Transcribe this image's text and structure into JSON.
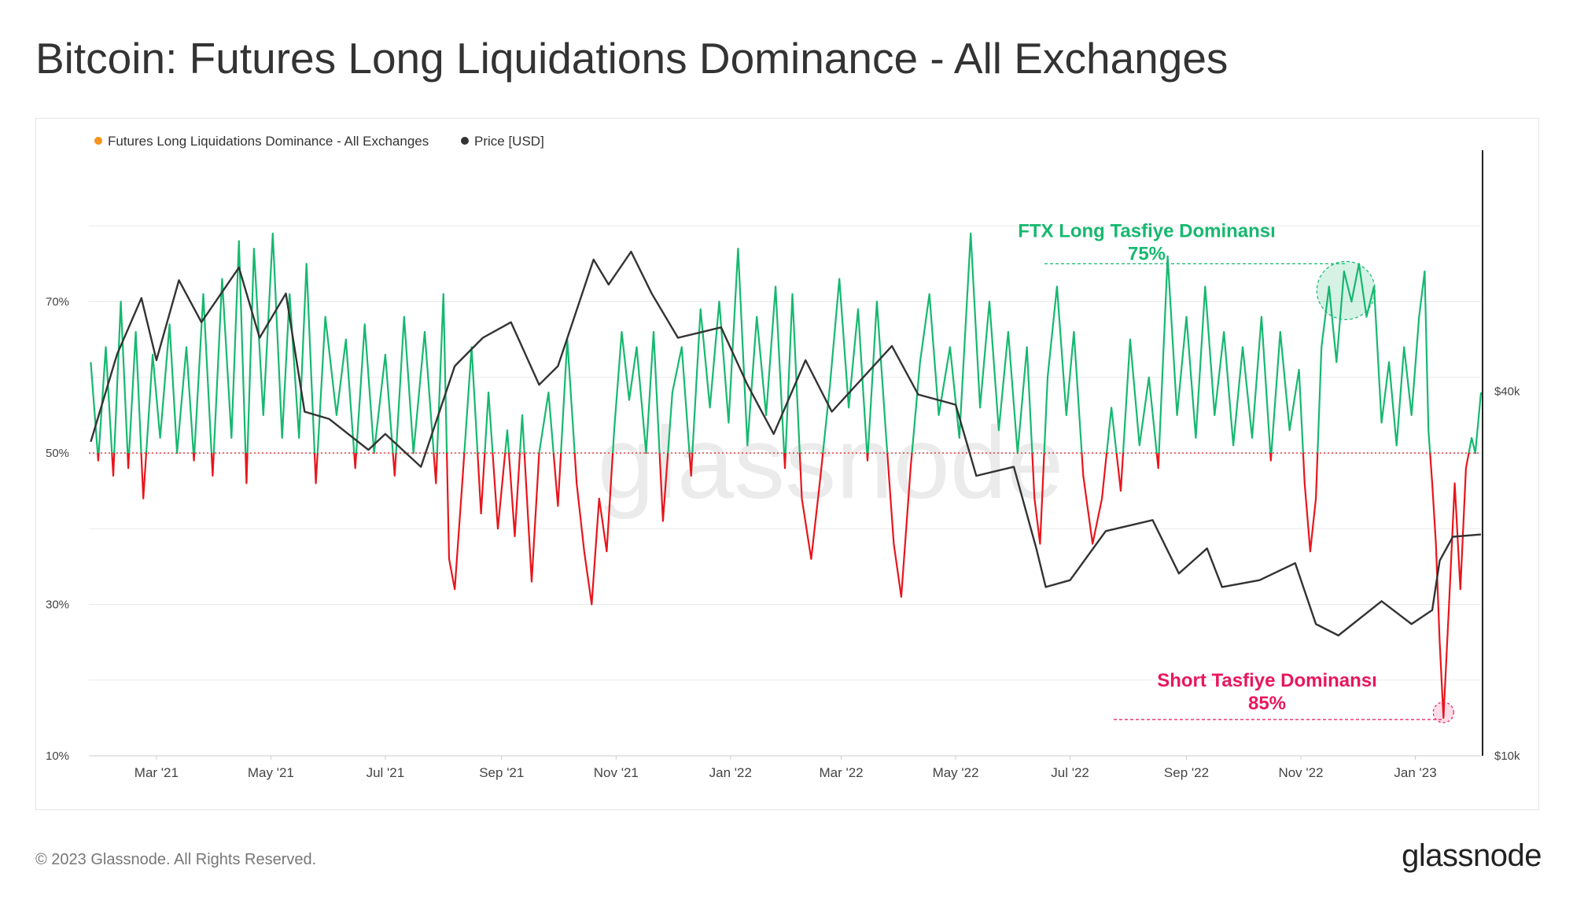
{
  "page": {
    "title": "Bitcoin: Futures Long Liquidations Dominance - All Exchanges",
    "footer_copyright": "© 2023 Glassnode. All Rights Reserved.",
    "brand": "glassnode",
    "watermark": "glassnode"
  },
  "colors": {
    "above_50": "#16b86f",
    "below_50": "#e8151b",
    "price": "#333333",
    "legend_dominance": "#f7931a",
    "legend_price": "#333333",
    "ftx_annotation": "#16b86f",
    "short_annotation": "#e8175d",
    "grid": "#e9e9e9"
  },
  "chart_data": {
    "type": "line",
    "legend": [
      {
        "name": "Futures Long Liquidations Dominance - All Exchanges",
        "color": "#f7931a"
      },
      {
        "name": "Price [USD]",
        "color": "#333333"
      }
    ],
    "legend_position": "top-left",
    "x_ticks": [
      "Mar '21",
      "May '21",
      "Jul '21",
      "Sep '21",
      "Nov '21",
      "Jan '22",
      "Mar '22",
      "May '22",
      "Jul '22",
      "Sep '22",
      "Nov '22",
      "Jan '23"
    ],
    "x_range": [
      "2021-01-24",
      "2023-02-05"
    ],
    "y_left": {
      "ticks": [
        "10%",
        "30%",
        "50%",
        "70%"
      ],
      "values": [
        10,
        30,
        50,
        70
      ],
      "range": [
        10,
        90
      ]
    },
    "y_right": {
      "ticks": [
        "$10k",
        "$40k"
      ],
      "values": [
        10000,
        40000
      ],
      "scale": "log",
      "range": [
        10000,
        100000
      ]
    },
    "threshold": 50,
    "grid": true,
    "price_series": {
      "name": "Price [USD]",
      "points": [
        [
          "2021-01-25",
          33000
        ],
        [
          "2021-02-08",
          46000
        ],
        [
          "2021-02-21",
          57000
        ],
        [
          "2021-03-01",
          45000
        ],
        [
          "2021-03-13",
          61000
        ],
        [
          "2021-03-25",
          52000
        ],
        [
          "2021-04-14",
          64000
        ],
        [
          "2021-04-25",
          49000
        ],
        [
          "2021-05-09",
          58000
        ],
        [
          "2021-05-19",
          37000
        ],
        [
          "2021-06-01",
          36000
        ],
        [
          "2021-06-22",
          32000
        ],
        [
          "2021-07-01",
          34000
        ],
        [
          "2021-07-20",
          30000
        ],
        [
          "2021-08-07",
          44000
        ],
        [
          "2021-08-22",
          49000
        ],
        [
          "2021-09-06",
          52000
        ],
        [
          "2021-09-21",
          41000
        ],
        [
          "2021-10-01",
          44000
        ],
        [
          "2021-10-20",
          66000
        ],
        [
          "2021-10-28",
          60000
        ],
        [
          "2021-11-09",
          68000
        ],
        [
          "2021-11-20",
          58000
        ],
        [
          "2021-12-04",
          49000
        ],
        [
          "2021-12-27",
          51000
        ],
        [
          "2022-01-10",
          41000
        ],
        [
          "2022-01-24",
          34000
        ],
        [
          "2022-02-10",
          45000
        ],
        [
          "2022-02-24",
          37000
        ],
        [
          "2022-03-28",
          47500
        ],
        [
          "2022-04-11",
          39500
        ],
        [
          "2022-05-01",
          38000
        ],
        [
          "2022-05-12",
          29000
        ],
        [
          "2022-06-01",
          30000
        ],
        [
          "2022-06-13",
          22000
        ],
        [
          "2022-06-18",
          19000
        ],
        [
          "2022-07-01",
          19500
        ],
        [
          "2022-07-20",
          23500
        ],
        [
          "2022-08-14",
          24500
        ],
        [
          "2022-08-28",
          20000
        ],
        [
          "2022-09-12",
          22000
        ],
        [
          "2022-09-20",
          19000
        ],
        [
          "2022-10-10",
          19500
        ],
        [
          "2022-10-29",
          20800
        ],
        [
          "2022-11-09",
          16500
        ],
        [
          "2022-11-21",
          15800
        ],
        [
          "2022-12-14",
          18000
        ],
        [
          "2022-12-30",
          16500
        ],
        [
          "2023-01-10",
          17400
        ],
        [
          "2023-01-14",
          21000
        ],
        [
          "2023-01-21",
          23000
        ],
        [
          "2023-02-05",
          23200
        ]
      ]
    },
    "dominance_series": {
      "name": "Futures Long Liquidations Dominance - All Exchanges",
      "unit": "%",
      "points": [
        [
          "2021-01-25",
          62
        ],
        [
          "2021-01-29",
          49
        ],
        [
          "2021-02-02",
          64
        ],
        [
          "2021-02-06",
          47
        ],
        [
          "2021-02-10",
          70
        ],
        [
          "2021-02-14",
          48
        ],
        [
          "2021-02-18",
          66
        ],
        [
          "2021-02-22",
          44
        ],
        [
          "2021-02-27",
          63
        ],
        [
          "2021-03-03",
          52
        ],
        [
          "2021-03-08",
          67
        ],
        [
          "2021-03-12",
          50
        ],
        [
          "2021-03-17",
          64
        ],
        [
          "2021-03-21",
          49
        ],
        [
          "2021-03-26",
          71
        ],
        [
          "2021-03-31",
          47
        ],
        [
          "2021-04-05",
          73
        ],
        [
          "2021-04-10",
          52
        ],
        [
          "2021-04-14",
          78
        ],
        [
          "2021-04-18",
          46
        ],
        [
          "2021-04-22",
          77
        ],
        [
          "2021-04-27",
          55
        ],
        [
          "2021-05-02",
          79
        ],
        [
          "2021-05-07",
          52
        ],
        [
          "2021-05-11",
          71
        ],
        [
          "2021-05-16",
          52
        ],
        [
          "2021-05-20",
          75
        ],
        [
          "2021-05-25",
          46
        ],
        [
          "2021-05-30",
          68
        ],
        [
          "2021-06-05",
          55
        ],
        [
          "2021-06-10",
          65
        ],
        [
          "2021-06-15",
          48
        ],
        [
          "2021-06-20",
          67
        ],
        [
          "2021-06-25",
          50
        ],
        [
          "2021-07-01",
          63
        ],
        [
          "2021-07-06",
          47
        ],
        [
          "2021-07-11",
          68
        ],
        [
          "2021-07-16",
          50
        ],
        [
          "2021-07-22",
          66
        ],
        [
          "2021-07-28",
          46
        ],
        [
          "2021-08-01",
          71
        ],
        [
          "2021-08-04",
          36
        ],
        [
          "2021-08-07",
          32
        ],
        [
          "2021-08-11",
          46
        ],
        [
          "2021-08-16",
          64
        ],
        [
          "2021-08-21",
          42
        ],
        [
          "2021-08-25",
          58
        ],
        [
          "2021-08-30",
          40
        ],
        [
          "2021-09-04",
          53
        ],
        [
          "2021-09-08",
          39
        ],
        [
          "2021-09-12",
          55
        ],
        [
          "2021-09-17",
          33
        ],
        [
          "2021-09-21",
          50
        ],
        [
          "2021-09-26",
          58
        ],
        [
          "2021-10-01",
          43
        ],
        [
          "2021-10-06",
          65
        ],
        [
          "2021-10-11",
          46
        ],
        [
          "2021-10-15",
          37
        ],
        [
          "2021-10-19",
          30
        ],
        [
          "2021-10-23",
          44
        ],
        [
          "2021-10-27",
          37
        ],
        [
          "2021-10-31",
          53
        ],
        [
          "2021-11-04",
          66
        ],
        [
          "2021-11-08",
          57
        ],
        [
          "2021-11-12",
          64
        ],
        [
          "2021-11-17",
          50
        ],
        [
          "2021-11-21",
          66
        ],
        [
          "2021-11-26",
          41
        ],
        [
          "2021-12-01",
          58
        ],
        [
          "2021-12-06",
          64
        ],
        [
          "2021-12-11",
          47
        ],
        [
          "2021-12-16",
          69
        ],
        [
          "2021-12-21",
          56
        ],
        [
          "2021-12-26",
          70
        ],
        [
          "2021-12-31",
          54
        ],
        [
          "2022-01-05",
          77
        ],
        [
          "2022-01-10",
          51
        ],
        [
          "2022-01-15",
          68
        ],
        [
          "2022-01-20",
          55
        ],
        [
          "2022-01-25",
          72
        ],
        [
          "2022-01-30",
          48
        ],
        [
          "2022-02-03",
          71
        ],
        [
          "2022-02-08",
          44
        ],
        [
          "2022-02-13",
          36
        ],
        [
          "2022-02-18",
          47
        ],
        [
          "2022-02-23",
          59
        ],
        [
          "2022-02-28",
          73
        ],
        [
          "2022-03-05",
          56
        ],
        [
          "2022-03-10",
          69
        ],
        [
          "2022-03-15",
          49
        ],
        [
          "2022-03-20",
          70
        ],
        [
          "2022-03-25",
          52
        ],
        [
          "2022-03-29",
          38
        ],
        [
          "2022-04-02",
          31
        ],
        [
          "2022-04-07",
          48
        ],
        [
          "2022-04-12",
          62
        ],
        [
          "2022-04-17",
          71
        ],
        [
          "2022-04-22",
          55
        ],
        [
          "2022-04-28",
          64
        ],
        [
          "2022-05-03",
          52
        ],
        [
          "2022-05-09",
          79
        ],
        [
          "2022-05-14",
          56
        ],
        [
          "2022-05-19",
          70
        ],
        [
          "2022-05-24",
          53
        ],
        [
          "2022-05-29",
          66
        ],
        [
          "2022-06-03",
          50
        ],
        [
          "2022-06-08",
          64
        ],
        [
          "2022-06-12",
          44
        ],
        [
          "2022-06-15",
          38
        ],
        [
          "2022-06-19",
          60
        ],
        [
          "2022-06-24",
          72
        ],
        [
          "2022-06-29",
          55
        ],
        [
          "2022-07-03",
          66
        ],
        [
          "2022-07-08",
          47
        ],
        [
          "2022-07-13",
          38
        ],
        [
          "2022-07-18",
          44
        ],
        [
          "2022-07-23",
          56
        ],
        [
          "2022-07-28",
          45
        ],
        [
          "2022-08-02",
          65
        ],
        [
          "2022-08-07",
          51
        ],
        [
          "2022-08-12",
          60
        ],
        [
          "2022-08-17",
          48
        ],
        [
          "2022-08-22",
          76
        ],
        [
          "2022-08-27",
          55
        ],
        [
          "2022-09-01",
          68
        ],
        [
          "2022-09-06",
          52
        ],
        [
          "2022-09-11",
          72
        ],
        [
          "2022-09-16",
          55
        ],
        [
          "2022-09-21",
          66
        ],
        [
          "2022-09-26",
          51
        ],
        [
          "2022-10-01",
          64
        ],
        [
          "2022-10-06",
          52
        ],
        [
          "2022-10-11",
          68
        ],
        [
          "2022-10-16",
          49
        ],
        [
          "2022-10-21",
          66
        ],
        [
          "2022-10-26",
          53
        ],
        [
          "2022-10-31",
          61
        ],
        [
          "2022-11-03",
          46
        ],
        [
          "2022-11-06",
          37
        ],
        [
          "2022-11-09",
          44
        ],
        [
          "2022-11-12",
          64
        ],
        [
          "2022-11-16",
          72
        ],
        [
          "2022-11-20",
          62
        ],
        [
          "2022-11-24",
          74
        ],
        [
          "2022-11-28",
          70
        ],
        [
          "2022-12-02",
          75
        ],
        [
          "2022-12-06",
          68
        ],
        [
          "2022-12-10",
          72
        ],
        [
          "2022-12-14",
          54
        ],
        [
          "2022-12-18",
          62
        ],
        [
          "2022-12-22",
          51
        ],
        [
          "2022-12-26",
          64
        ],
        [
          "2022-12-30",
          55
        ],
        [
          "2023-01-03",
          68
        ],
        [
          "2023-01-06",
          74
        ],
        [
          "2023-01-08",
          53
        ],
        [
          "2023-01-10",
          46
        ],
        [
          "2023-01-12",
          38
        ],
        [
          "2023-01-14",
          25
        ],
        [
          "2023-01-16",
          15
        ],
        [
          "2023-01-19",
          30
        ],
        [
          "2023-01-22",
          46
        ],
        [
          "2023-01-25",
          32
        ],
        [
          "2023-01-28",
          48
        ],
        [
          "2023-01-31",
          52
        ],
        [
          "2023-02-02",
          50
        ],
        [
          "2023-02-05",
          58
        ]
      ]
    },
    "annotations": [
      {
        "title": "FTX Long Tasfiye Dominansı",
        "value": "75%",
        "date": "2022-11-25",
        "level": 75,
        "color": "#16b86f"
      },
      {
        "title": "Short Tasfiye Dominansı",
        "value": "85%",
        "date": "2023-01-16",
        "level": 15,
        "color": "#e8175d"
      }
    ]
  }
}
